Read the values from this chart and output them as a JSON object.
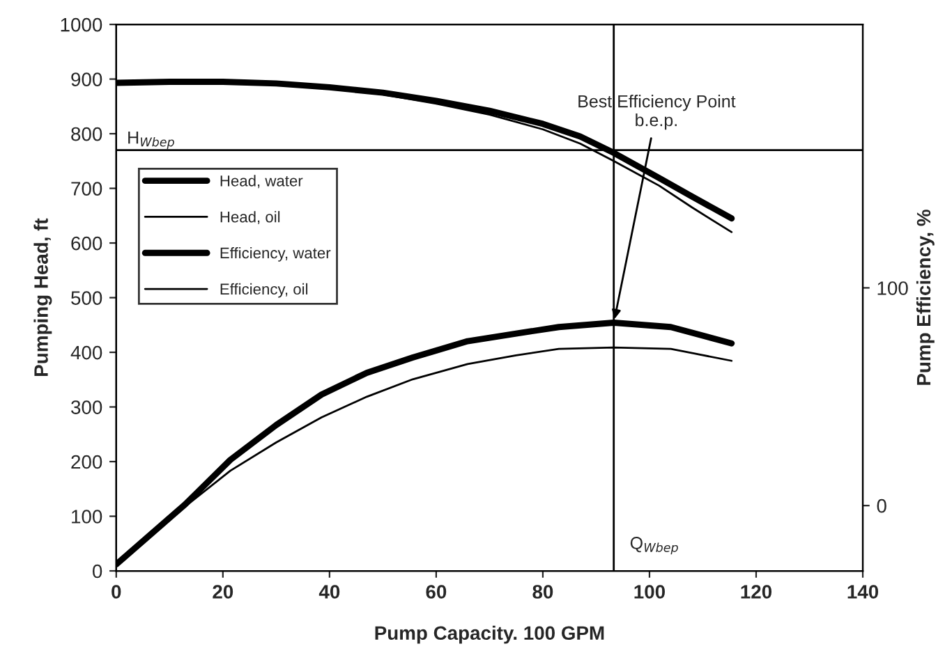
{
  "chart_data": {
    "type": "line",
    "xlabel": "Pump Capacity. 100 GPM",
    "ylabel": "Pumping Head, ft",
    "y2label": "Pump Efficiency, %",
    "xlim": [
      0,
      140
    ],
    "xticks": [
      0,
      20,
      40,
      60,
      80,
      100,
      120,
      140
    ],
    "ylim": [
      0,
      1000
    ],
    "yticks": [
      0,
      100,
      200,
      300,
      400,
      500,
      600,
      700,
      800,
      900,
      1000
    ],
    "y2lim": [
      -30,
      221
    ],
    "y2ticks": [
      0,
      100
    ],
    "series": [
      {
        "name": "Head, water",
        "color": "#000000",
        "x": [
          0,
          10,
          20,
          30,
          40,
          50,
          60,
          70,
          80,
          87,
          93.3,
          101.8,
          108,
          115.4
        ],
        "values": [
          893,
          895,
          895,
          892,
          885,
          875,
          860,
          842,
          818,
          795,
          765,
          719,
          685,
          645
        ]
      },
      {
        "name": "Head, oil",
        "color": "#000000",
        "x": [
          0,
          10,
          20,
          30,
          40,
          50,
          60,
          70,
          80,
          87,
          93.3,
          101.8,
          108,
          115.4
        ],
        "values": [
          893,
          895,
          895,
          891,
          883,
          872,
          855,
          835,
          808,
          782,
          750,
          705,
          665,
          620
        ]
      },
      {
        "name": "Efficiency, water",
        "color": "#000000",
        "axis": "y2",
        "x": [
          0,
          12.9,
          21.4,
          30,
          38.5,
          47,
          55.6,
          65.9,
          75,
          83,
          93.3,
          104,
          115.4
        ],
        "values": [
          -27,
          0.5,
          21,
          37,
          51,
          61,
          68,
          75.5,
          79,
          82,
          84,
          82,
          74.5
        ]
      },
      {
        "name": "Efficiency, oil",
        "color": "#000000",
        "axis": "y2",
        "x": [
          0,
          12.9,
          21.4,
          30,
          38.5,
          47,
          55.6,
          65.9,
          75,
          83,
          93.3,
          104,
          115.4
        ],
        "values": [
          -27,
          -0.5,
          16,
          29,
          40.5,
          50,
          58,
          65,
          69,
          72,
          72.6,
          72,
          66.5
        ]
      }
    ],
    "ref_lines": [
      {
        "axis": "y",
        "value": 770,
        "label": "H$_{Wbep}$"
      },
      {
        "axis": "x",
        "value": 93.3,
        "label": "Q$_{Wbep}$"
      }
    ],
    "annotations": [
      {
        "text": "Best Efficiency Point\nb.e.p.",
        "x": 93.3,
        "y": 454
      }
    ],
    "legend": "top left",
    "grid": false,
    "marker": "none",
    "line_style": "solid"
  }
}
